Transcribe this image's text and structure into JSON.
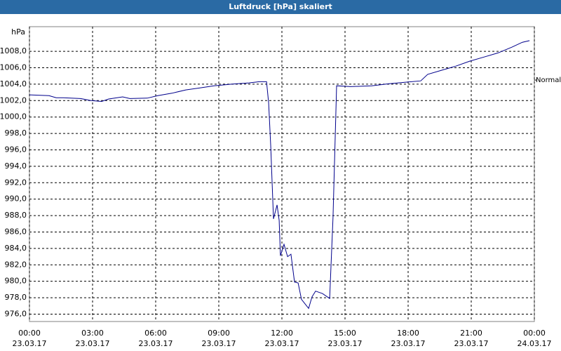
{
  "chart_data": {
    "type": "line",
    "title": "Luftdruck [hPa] skaliert",
    "y_label": "hPa",
    "x": [
      0,
      0.93,
      1.27,
      1.6,
      2.43,
      2.93,
      3.43,
      3.77,
      4.43,
      4.77,
      5.6,
      6.1,
      6.77,
      7.43,
      8.1,
      8.77,
      9.6,
      10.43,
      10.93,
      11.27,
      11.37,
      11.47,
      11.6,
      11.77,
      11.87,
      11.93,
      12.1,
      12.27,
      12.43,
      12.6,
      12.77,
      12.93,
      13.27,
      13.43,
      13.6,
      13.93,
      14.27,
      14.43,
      14.6,
      15.27,
      16.27,
      17.1,
      17.93,
      18.6,
      18.93,
      19.6,
      20.27,
      20.93,
      21.6,
      22.27,
      22.93,
      23.43,
      23.77
    ],
    "series": [
      {
        "name": "Luftdruck",
        "color": "#00008b",
        "values": [
          1002.7,
          1002.6,
          1002.35,
          1002.35,
          1002.25,
          1002.0,
          1001.9,
          1002.2,
          1002.45,
          1002.25,
          1002.3,
          1002.6,
          1002.9,
          1003.3,
          1003.55,
          1003.8,
          1004.0,
          1004.15,
          1004.3,
          1004.3,
          1001.7,
          996.4,
          987.6,
          989.3,
          987.4,
          983.1,
          984.5,
          983.0,
          983.3,
          979.9,
          979.8,
          977.8,
          976.7,
          978.1,
          978.8,
          978.5,
          977.9,
          987.8,
          1003.8,
          1003.7,
          1003.8,
          1004.05,
          1004.25,
          1004.4,
          1005.2,
          1005.7,
          1006.2,
          1006.8,
          1007.3,
          1007.8,
          1008.5,
          1009.1,
          1009.3
        ]
      }
    ],
    "xlim": [
      0,
      24
    ],
    "xticks": [
      {
        "value": 0,
        "label": "00:00",
        "date": "23.03.17"
      },
      {
        "value": 3,
        "label": "03:00",
        "date": "23.03.17"
      },
      {
        "value": 6,
        "label": "06:00",
        "date": "23.03.17"
      },
      {
        "value": 9,
        "label": "09:00",
        "date": "23.03.17"
      },
      {
        "value": 12,
        "label": "12:00",
        "date": "23.03.17"
      },
      {
        "value": 15,
        "label": "15:00",
        "date": "23.03.17"
      },
      {
        "value": 18,
        "label": "18:00",
        "date": "23.03.17"
      },
      {
        "value": 21,
        "label": "21:00",
        "date": "23.03.17"
      },
      {
        "value": 24,
        "label": "00:00",
        "date": "24.03.17"
      }
    ],
    "ylim": [
      975.1,
      1011.0
    ],
    "yticks": [
      {
        "value": 976,
        "label": "976,0"
      },
      {
        "value": 978,
        "label": "978,0"
      },
      {
        "value": 980,
        "label": "980,0"
      },
      {
        "value": 982,
        "label": "982,0"
      },
      {
        "value": 984,
        "label": "984,0"
      },
      {
        "value": 986,
        "label": "986,0"
      },
      {
        "value": 988,
        "label": "988,0"
      },
      {
        "value": 990,
        "label": "990,0"
      },
      {
        "value": 992,
        "label": "992,0"
      },
      {
        "value": 994,
        "label": "994,0"
      },
      {
        "value": 996,
        "label": "996,0"
      },
      {
        "value": 998,
        "label": "998,0"
      },
      {
        "value": 1000,
        "label": "1000,0"
      },
      {
        "value": 1002,
        "label": "1002,0"
      },
      {
        "value": 1004,
        "label": "1004,0"
      },
      {
        "value": 1006,
        "label": "1006,0"
      },
      {
        "value": 1008,
        "label": "1008,0"
      }
    ],
    "grid": true,
    "annotation": {
      "text": "Normal",
      "value": 1004.5
    }
  }
}
